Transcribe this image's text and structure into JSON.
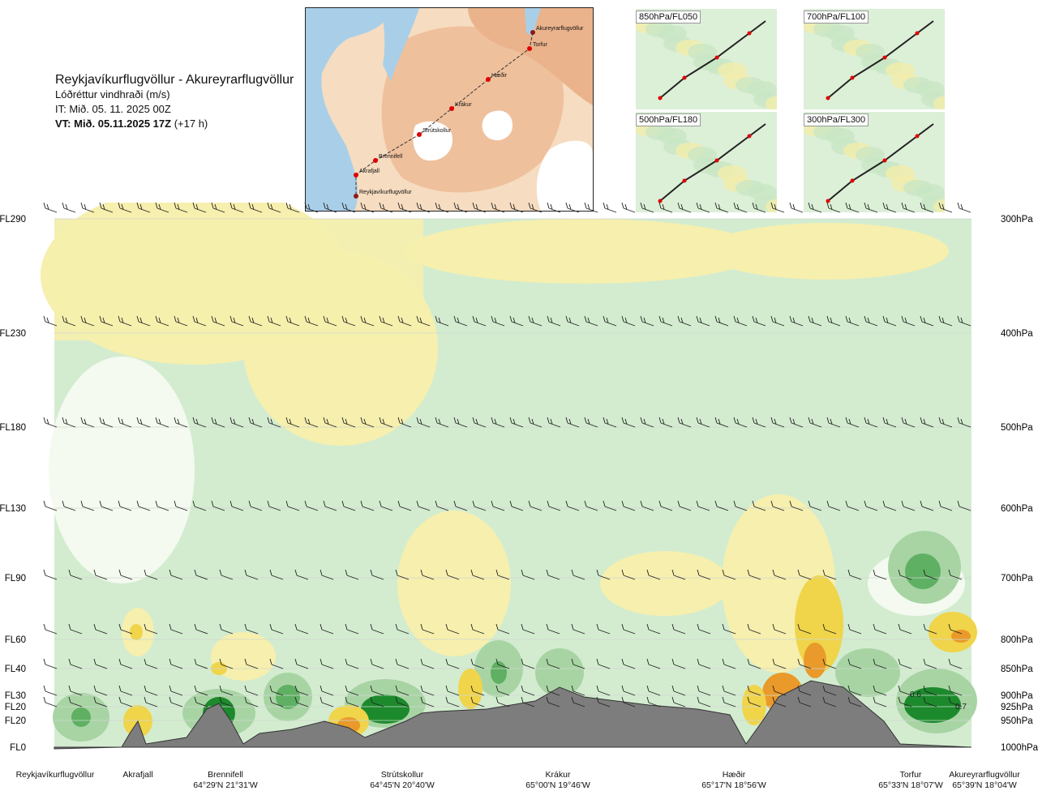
{
  "header": {
    "route": "Reykjavíkurflugvöllur - Akureyrarflugvöllur",
    "subtitle": "Lóðréttur vindhraði (m/s)",
    "issue_time": "IT: Mið. 05. 11. 2025 00Z",
    "valid_time": "VT: Mið. 05.11.2025 17Z",
    "lead": "(+17 h)"
  },
  "map": {
    "route_points": [
      "Akureyrarflugvöllur",
      "Torfur",
      "Hæðir",
      "Krákur",
      "Strútskollur",
      "Brennifell",
      "Akrafjall",
      "Reykjavíkurflugvöllur"
    ],
    "colors": {
      "land": "#f6d9b8",
      "highland": "#efb88f",
      "sea": "#a9cfe8",
      "glacier": "#ffffff",
      "route": "#333333",
      "point": "#e00000"
    }
  },
  "insets": [
    {
      "id": "850",
      "label": "850hPa/FL050"
    },
    {
      "id": "700",
      "label": "700hPa/FL100"
    },
    {
      "id": "500",
      "label": "500hPa/FL180"
    },
    {
      "id": "300",
      "label": "300hPa/FL300"
    }
  ],
  "chart_data": {
    "type": "heatmap",
    "title": "Lóðréttur vindhraði (m/s)",
    "left_axis_levels": [
      {
        "label": "FL290",
        "p": 300
      },
      {
        "label": "FL230",
        "p": 400
      },
      {
        "label": "FL180",
        "p": 500
      },
      {
        "label": "FL130",
        "p": 600
      },
      {
        "label": "FL90",
        "p": 700
      },
      {
        "label": "FL60",
        "p": 800
      },
      {
        "label": "FL40",
        "p": 850
      },
      {
        "label": "FL30",
        "p": 900
      },
      {
        "label": "FL20",
        "p": 925
      },
      {
        "label": "FL20",
        "p": 950
      },
      {
        "label": "FL0",
        "p": 1000
      }
    ],
    "right_axis_levels": [
      "300hPa",
      "400hPa",
      "500hPa",
      "600hPa",
      "700hPa",
      "800hPa",
      "850hPa",
      "900hPa",
      "925hPa",
      "950hPa",
      "1000hPa"
    ],
    "stations": [
      {
        "name": "Reykjavíkurflugvöllur",
        "coord": ""
      },
      {
        "name": "Akrafjall",
        "coord": ""
      },
      {
        "name": "Brennifell",
        "coord": "64°29'N 21°31'W"
      },
      {
        "name": "Strútskollur",
        "coord": "64°45'N 20°40'W"
      },
      {
        "name": "Krákur",
        "coord": "65°00'N 19°46'W"
      },
      {
        "name": "Hæðir",
        "coord": "65°17'N 18°56'W"
      },
      {
        "name": "Torfur",
        "coord": "65°33'N 18°07'W"
      },
      {
        "name": "Akureyrarflugvöllur",
        "coord": "65°39'N 18°04'W"
      }
    ],
    "annotations": [
      "0.6",
      "0.7"
    ],
    "colors": {
      "up_weak": "#f6efad",
      "up_mod": "#f0d44a",
      "up_strong": "#e99a2a",
      "up_vstrong": "#c65b17",
      "down_weak": "#d3ecd0",
      "down_mod": "#a8d4a4",
      "down_strong": "#5fb063",
      "down_vstrong": "#1c8a2c",
      "neutral": "#f4faf0",
      "terrain": "#7d7d7d",
      "barb": "#222222"
    }
  }
}
